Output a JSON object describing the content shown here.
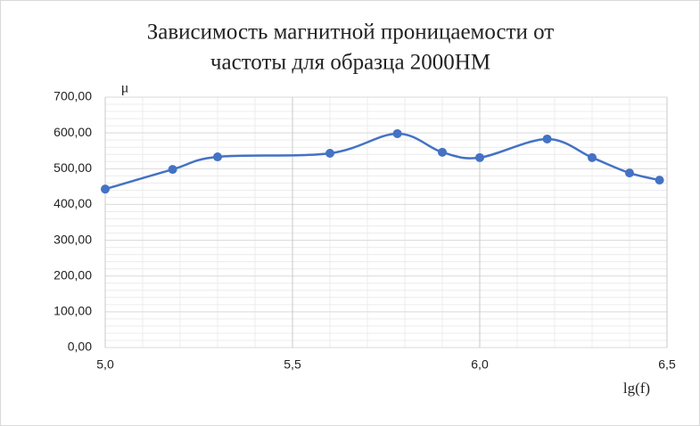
{
  "chart_data": {
    "type": "line",
    "title_lines": [
      "Зависимость магнитной проницаемости от",
      "частоты для образца 2000НМ"
    ],
    "y_label": "μ",
    "x_label": "lg(f)",
    "x": [
      5.0,
      5.18,
      5.3,
      5.6,
      5.78,
      5.9,
      6.0,
      6.18,
      6.3,
      6.4,
      6.48
    ],
    "series": [
      {
        "color": "#4472c4",
        "values": [
          443,
          498,
          533,
          543,
          598,
          546,
          531,
          583,
          531,
          488,
          468
        ]
      }
    ],
    "smooth": true,
    "xlim": [
      5.0,
      6.5
    ],
    "xticks": [
      {
        "value": 5.0,
        "label": "5,0"
      },
      {
        "value": 5.5,
        "label": "5,5"
      },
      {
        "value": 6.0,
        "label": "6,0"
      },
      {
        "value": 6.5,
        "label": "6,5"
      }
    ],
    "xminorticks": [
      5.1,
      5.2,
      5.3,
      5.4,
      5.6,
      5.7,
      5.8,
      5.9,
      6.1,
      6.2,
      6.3,
      6.4
    ],
    "ylim": [
      0,
      700
    ],
    "yticks": [
      {
        "value": 0,
        "label": "0,00"
      },
      {
        "value": 100,
        "label": "100,00"
      },
      {
        "value": 200,
        "label": "200,00"
      },
      {
        "value": 300,
        "label": "300,00"
      },
      {
        "value": 400,
        "label": "400,00"
      },
      {
        "value": 500,
        "label": "500,00"
      },
      {
        "value": 600,
        "label": "600,00"
      },
      {
        "value": 700,
        "label": "700,00"
      }
    ],
    "yminorticks": [
      20,
      40,
      60,
      80,
      120,
      140,
      160,
      180,
      220,
      240,
      260,
      280,
      320,
      340,
      360,
      380,
      420,
      440,
      460,
      480,
      520,
      540,
      560,
      580,
      620,
      640,
      660,
      680
    ],
    "grid": true
  }
}
